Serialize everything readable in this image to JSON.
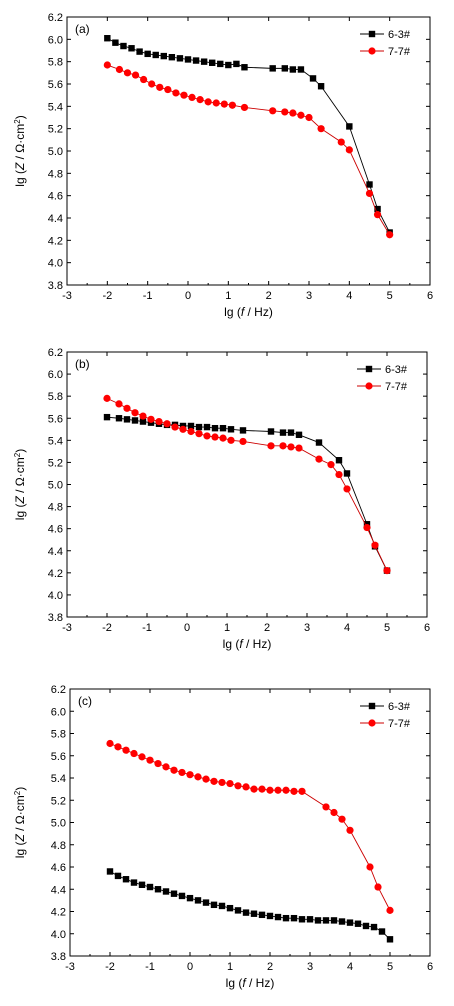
{
  "colors": {
    "series_a": "#000000",
    "series_b": "#ff0000",
    "line_b": "#cc0000"
  },
  "chart_data": [
    {
      "type": "line",
      "panel_label": "(a)",
      "xlabel": {
        "pre": "lg (",
        "var": "f",
        "post": " / Hz)"
      },
      "ylabel": {
        "pre": "lg (",
        "var": "Z",
        "post": " / Ω·cm",
        "sup": "2",
        "close": ")"
      },
      "xlim": [
        -3,
        6
      ],
      "ylim": [
        3.8,
        6.2
      ],
      "xticks": [
        "-3",
        "-2",
        "-1",
        "0",
        "1",
        "2",
        "3",
        "4",
        "5",
        "6"
      ],
      "yticks": [
        "3.8",
        "4.0",
        "4.2",
        "4.4",
        "4.6",
        "4.8",
        "5.0",
        "5.2",
        "5.4",
        "5.6",
        "5.8",
        "6.0",
        "6.2"
      ],
      "legend_position": "top-right",
      "series": [
        {
          "name": "6-3#",
          "marker": "square",
          "x": [
            -2.0,
            -1.8,
            -1.6,
            -1.4,
            -1.2,
            -1.0,
            -0.8,
            -0.6,
            -0.4,
            -0.2,
            0.0,
            0.2,
            0.4,
            0.6,
            0.8,
            1.0,
            1.2,
            1.4,
            2.1,
            2.4,
            2.6,
            2.8,
            3.1,
            3.3,
            4.0,
            4.5,
            4.7,
            5.0
          ],
          "y": [
            6.01,
            5.97,
            5.94,
            5.92,
            5.89,
            5.87,
            5.86,
            5.85,
            5.84,
            5.83,
            5.82,
            5.81,
            5.8,
            5.79,
            5.78,
            5.77,
            5.78,
            5.75,
            5.74,
            5.74,
            5.73,
            5.73,
            5.65,
            5.58,
            5.22,
            4.7,
            4.48,
            4.27
          ]
        },
        {
          "name": "7-7#",
          "marker": "circle",
          "x": [
            -2.0,
            -1.7,
            -1.5,
            -1.3,
            -1.1,
            -0.9,
            -0.7,
            -0.5,
            -0.3,
            -0.1,
            0.1,
            0.3,
            0.5,
            0.7,
            0.9,
            1.1,
            1.4,
            2.1,
            2.4,
            2.6,
            2.8,
            3.0,
            3.3,
            3.8,
            4.0,
            4.5,
            4.7,
            5.0
          ],
          "y": [
            5.77,
            5.73,
            5.7,
            5.68,
            5.64,
            5.6,
            5.57,
            5.55,
            5.52,
            5.5,
            5.48,
            5.46,
            5.44,
            5.43,
            5.42,
            5.41,
            5.39,
            5.36,
            5.35,
            5.34,
            5.32,
            5.3,
            5.2,
            5.08,
            5.01,
            4.62,
            4.43,
            4.25
          ]
        }
      ]
    },
    {
      "type": "line",
      "panel_label": "(b)",
      "xlabel": {
        "pre": "lg (",
        "var": "f",
        "post": " / Hz)"
      },
      "ylabel": {
        "pre": "lg (",
        "var": "Z",
        "post": " / Ω·cm",
        "sup": "2",
        "close": ")"
      },
      "xlim": [
        -3,
        6
      ],
      "ylim": [
        3.8,
        6.2
      ],
      "xticks": [
        "-3",
        "-2",
        "-1",
        "0",
        "1",
        "2",
        "3",
        "4",
        "5",
        "6"
      ],
      "yticks": [
        "3.8",
        "4.0",
        "4.2",
        "4.4",
        "4.6",
        "4.8",
        "5.0",
        "5.2",
        "5.4",
        "5.6",
        "5.8",
        "6.0",
        "6.2"
      ],
      "legend_position": "top-right",
      "series": [
        {
          "name": "6-3#",
          "marker": "square",
          "x": [
            -2.0,
            -1.7,
            -1.5,
            -1.3,
            -1.1,
            -0.9,
            -0.7,
            -0.5,
            -0.3,
            -0.1,
            0.1,
            0.3,
            0.5,
            0.7,
            0.9,
            1.1,
            1.4,
            2.1,
            2.4,
            2.6,
            2.8,
            3.3,
            3.8,
            4.0,
            4.5,
            4.7,
            5.0
          ],
          "y": [
            5.61,
            5.6,
            5.59,
            5.58,
            5.57,
            5.56,
            5.55,
            5.54,
            5.54,
            5.53,
            5.53,
            5.52,
            5.52,
            5.51,
            5.51,
            5.5,
            5.49,
            5.48,
            5.47,
            5.47,
            5.45,
            5.38,
            5.22,
            5.1,
            4.64,
            4.44,
            4.22
          ]
        },
        {
          "name": "7-7#",
          "marker": "circle",
          "x": [
            -2.0,
            -1.7,
            -1.5,
            -1.3,
            -1.1,
            -0.9,
            -0.7,
            -0.5,
            -0.3,
            -0.1,
            0.1,
            0.3,
            0.5,
            0.7,
            0.9,
            1.1,
            1.4,
            2.1,
            2.4,
            2.6,
            2.8,
            3.3,
            3.6,
            3.8,
            4.0,
            4.5,
            4.7,
            5.0
          ],
          "y": [
            5.78,
            5.73,
            5.69,
            5.65,
            5.62,
            5.59,
            5.57,
            5.55,
            5.52,
            5.5,
            5.48,
            5.46,
            5.44,
            5.43,
            5.42,
            5.4,
            5.39,
            5.35,
            5.35,
            5.34,
            5.33,
            5.23,
            5.18,
            5.09,
            4.96,
            4.61,
            4.45,
            4.22
          ]
        }
      ]
    },
    {
      "type": "line",
      "panel_label": "(c)",
      "xlabel": {
        "pre": "lg (",
        "var": "f",
        "post": " / Hz)"
      },
      "ylabel": {
        "pre": "lg (",
        "var": "Z",
        "post": " / Ω·cm",
        "sup": "2",
        "close": ")"
      },
      "xlim": [
        -3,
        6
      ],
      "ylim": [
        3.8,
        6.2
      ],
      "xticks": [
        "-3",
        "-2",
        "-1",
        "0",
        "1",
        "2",
        "3",
        "4",
        "5",
        "6"
      ],
      "yticks": [
        "3.8",
        "4.0",
        "4.2",
        "4.4",
        "4.6",
        "4.8",
        "5.0",
        "5.2",
        "5.4",
        "5.6",
        "5.8",
        "6.0",
        "6.2"
      ],
      "legend_position": "top-right",
      "series": [
        {
          "name": "6-3#",
          "marker": "square",
          "x": [
            -2.0,
            -1.8,
            -1.6,
            -1.4,
            -1.2,
            -1.0,
            -0.8,
            -0.6,
            -0.4,
            -0.2,
            0.0,
            0.2,
            0.4,
            0.6,
            0.8,
            1.0,
            1.2,
            1.4,
            1.6,
            1.8,
            2.0,
            2.2,
            2.4,
            2.6,
            2.8,
            3.0,
            3.2,
            3.4,
            3.6,
            3.8,
            4.0,
            4.2,
            4.4,
            4.6,
            4.8,
            5.0
          ],
          "y": [
            4.56,
            4.52,
            4.49,
            4.46,
            4.44,
            4.42,
            4.4,
            4.38,
            4.36,
            4.34,
            4.32,
            4.3,
            4.28,
            4.26,
            4.25,
            4.23,
            4.21,
            4.19,
            4.18,
            4.17,
            4.16,
            4.15,
            4.14,
            4.14,
            4.13,
            4.13,
            4.12,
            4.12,
            4.12,
            4.11,
            4.1,
            4.09,
            4.07,
            4.06,
            4.02,
            3.95
          ]
        },
        {
          "name": "7-7#",
          "marker": "circle",
          "x": [
            -2.0,
            -1.8,
            -1.6,
            -1.4,
            -1.2,
            -1.0,
            -0.8,
            -0.6,
            -0.4,
            -0.2,
            0.0,
            0.2,
            0.4,
            0.6,
            0.8,
            1.0,
            1.2,
            1.4,
            1.6,
            1.8,
            2.0,
            2.2,
            2.4,
            2.6,
            2.8,
            3.4,
            3.6,
            3.8,
            4.0,
            4.5,
            4.7,
            5.0
          ],
          "y": [
            5.71,
            5.68,
            5.65,
            5.62,
            5.59,
            5.56,
            5.53,
            5.5,
            5.47,
            5.45,
            5.43,
            5.41,
            5.39,
            5.37,
            5.36,
            5.35,
            5.33,
            5.32,
            5.3,
            5.3,
            5.29,
            5.29,
            5.29,
            5.28,
            5.28,
            5.14,
            5.09,
            5.03,
            4.93,
            4.6,
            4.42,
            4.21
          ]
        }
      ]
    }
  ]
}
